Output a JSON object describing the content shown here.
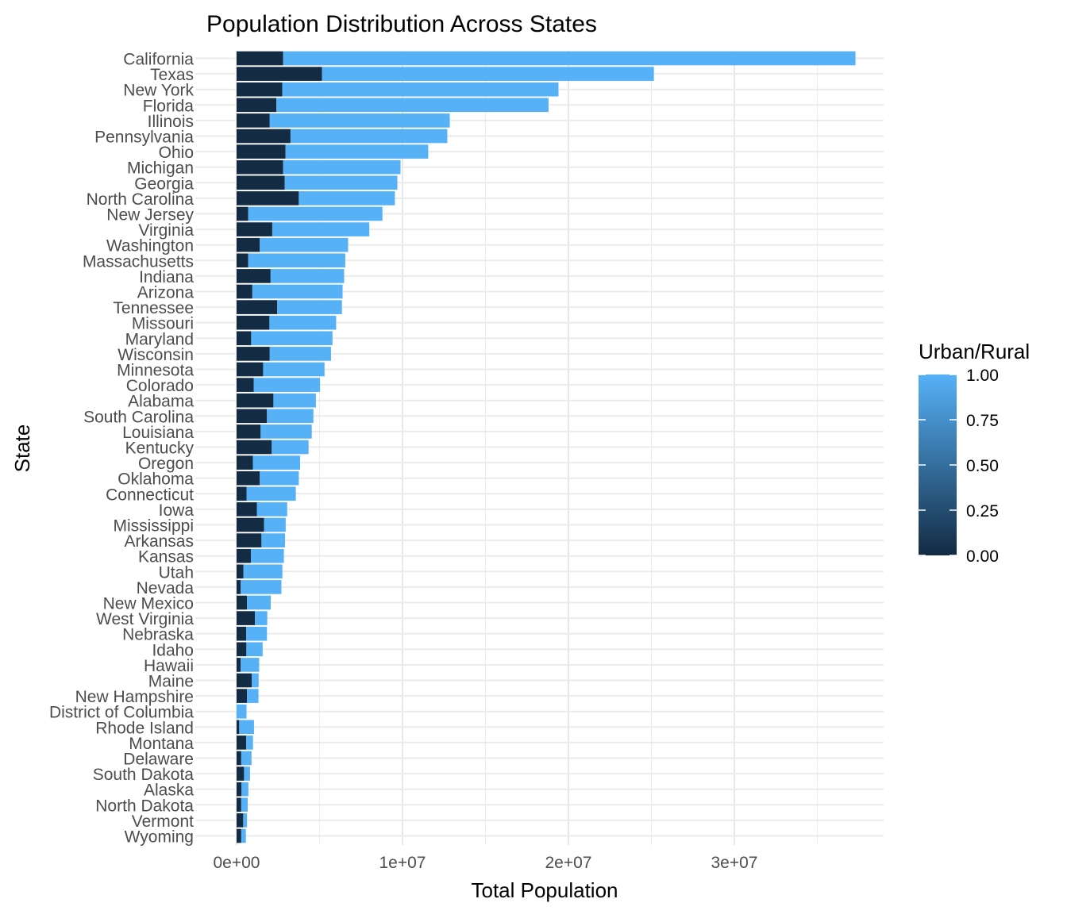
{
  "chart_data": {
    "type": "bar",
    "orientation": "horizontal",
    "stacked": true,
    "title": "Population Distribution Across States",
    "xlabel": "Total Population",
    "ylabel": "State",
    "xlim": [
      -2500000,
      39000000
    ],
    "x_ticks": [
      0,
      10000000,
      20000000,
      30000000
    ],
    "x_tick_labels": [
      "0e+00",
      "1e+07",
      "2e+07",
      "3e+07"
    ],
    "grid": true,
    "legend": {
      "title": "Urban/Rural",
      "position": "right",
      "type": "continuous",
      "ticks": [
        0,
        0.25,
        0.5,
        0.75,
        1
      ],
      "tick_labels": [
        "0.00",
        "0.25",
        "0.50",
        "0.75",
        "1.00"
      ],
      "color_low": "#132b43",
      "color_high": "#56b1f7"
    },
    "series": [
      {
        "urban_rural": 0,
        "color": "#132b43"
      },
      {
        "urban_rural": 1,
        "color": "#56b1f7"
      }
    ],
    "categories": [
      "California",
      "Texas",
      "New York",
      "Florida",
      "Illinois",
      "Pennsylvania",
      "Ohio",
      "Michigan",
      "Georgia",
      "North Carolina",
      "New Jersey",
      "Virginia",
      "Washington",
      "Massachusetts",
      "Indiana",
      "Arizona",
      "Tennessee",
      "Missouri",
      "Maryland",
      "Wisconsin",
      "Minnesota",
      "Colorado",
      "Alabama",
      "South Carolina",
      "Louisiana",
      "Kentucky",
      "Oregon",
      "Oklahoma",
      "Connecticut",
      "Iowa",
      "Mississippi",
      "Arkansas",
      "Kansas",
      "Utah",
      "Nevada",
      "New Mexico",
      "West Virginia",
      "Nebraska",
      "Idaho",
      "Hawaii",
      "Maine",
      "New Hampshire",
      "District of Columbia",
      "Rhode Island",
      "Montana",
      "Delaware",
      "South Dakota",
      "Alaska",
      "North Dakota",
      "Vermont",
      "Wyoming"
    ],
    "rural": [
      2800000,
      5150000,
      2750000,
      2400000,
      2000000,
      3250000,
      2950000,
      2800000,
      2900000,
      3750000,
      700000,
      2150000,
      1400000,
      700000,
      2050000,
      950000,
      2450000,
      1980000,
      880000,
      2000000,
      1600000,
      1030000,
      2220000,
      1830000,
      1450000,
      2120000,
      980000,
      1400000,
      600000,
      1220000,
      1650000,
      1500000,
      860000,
      410000,
      250000,
      630000,
      1110000,
      580000,
      590000,
      250000,
      920000,
      630000,
      0,
      160000,
      580000,
      280000,
      450000,
      300000,
      280000,
      400000,
      280000
    ],
    "total": [
      37300000,
      25150000,
      19400000,
      18800000,
      12850000,
      12700000,
      11550000,
      9880000,
      9690000,
      9540000,
      8790000,
      8000000,
      6720000,
      6550000,
      6480000,
      6390000,
      6350000,
      6000000,
      5780000,
      5690000,
      5300000,
      5030000,
      4780000,
      4630000,
      4530000,
      4340000,
      3830000,
      3750000,
      3570000,
      3050000,
      2960000,
      2920000,
      2850000,
      2760000,
      2700000,
      2060000,
      1850000,
      1830000,
      1570000,
      1360000,
      1330000,
      1320000,
      600000,
      1050000,
      990000,
      900000,
      810000,
      710000,
      670000,
      630000,
      560000
    ]
  }
}
